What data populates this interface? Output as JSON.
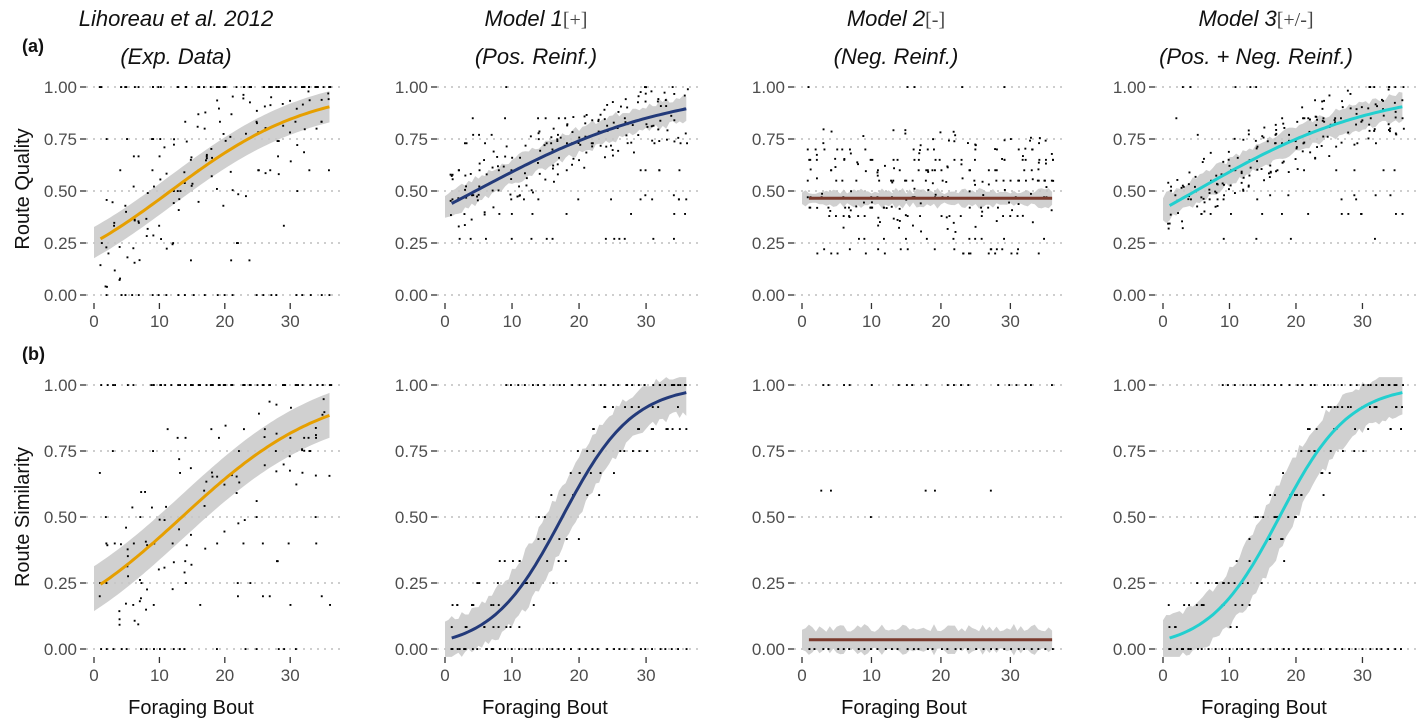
{
  "figure": {
    "panel_tags": [
      "(a)",
      "(b)"
    ],
    "columns": [
      {
        "title_line1": "Lihoreau et al. 2012",
        "bracket": "",
        "title_line2": "(Exp. Data)"
      },
      {
        "title_line1": "Model 1",
        "bracket": "[+]",
        "title_line2": "(Pos. Reinf.)"
      },
      {
        "title_line1": "Model 2",
        "bracket": "[-]",
        "title_line2": "(Neg. Reinf.)"
      },
      {
        "title_line1": "Model 3",
        "bracket": "[+/-]",
        "title_line2": "(Pos. + Neg. Reinf.)"
      }
    ],
    "row_labels": [
      "Route Quality",
      "Route Similarity"
    ],
    "xlabel": "Foraging Bout"
  },
  "chart_data": {
    "type": "scatter",
    "x_range": [
      0,
      37
    ],
    "ylim": [
      0,
      1
    ],
    "x_ticks": [
      0,
      10,
      20,
      30
    ],
    "y_ticks": [
      "0.00",
      "0.25",
      "0.50",
      "0.75",
      "1.00"
    ],
    "grid": "horizontal dotted",
    "colors": {
      "exp": "#E69F00",
      "model1": "#233A7A",
      "model2": "#7A3B2E",
      "model3": "#22CFCF",
      "ribbon": "#C8C8C8",
      "points": "#000000",
      "grid": "#BDBDBD"
    },
    "panels": [
      {
        "row": 0,
        "col": 0,
        "fit": {
          "kind": "logistic",
          "y1": 0.27,
          "y36": 0.905
        },
        "band": 0.075,
        "scatter": "spread_increasing",
        "seed": 11
      },
      {
        "row": 0,
        "col": 1,
        "fit": {
          "kind": "logistic",
          "y1": 0.44,
          "y36": 0.895
        },
        "band": 0.06,
        "scatter": "model_q",
        "seed": 23
      },
      {
        "row": 0,
        "col": 2,
        "fit": {
          "kind": "flat",
          "y": 0.465
        },
        "band": 0.035,
        "scatter": "model_q_flat",
        "seed": 37
      },
      {
        "row": 0,
        "col": 3,
        "fit": {
          "kind": "logistic",
          "y1": 0.43,
          "y36": 0.905
        },
        "band": 0.06,
        "scatter": "model_q",
        "seed": 41
      },
      {
        "row": 1,
        "col": 0,
        "fit": {
          "kind": "logistic",
          "y1": 0.245,
          "y36": 0.885
        },
        "band": 0.085,
        "scatter": "spread_increasing",
        "seed": 53
      },
      {
        "row": 1,
        "col": 1,
        "fit": {
          "kind": "sigmoid",
          "x0": 17.5,
          "k": 0.19
        },
        "band": 0.075,
        "scatter": "sim_model",
        "seed": 67
      },
      {
        "row": 1,
        "col": 2,
        "fit": {
          "kind": "flat",
          "y": 0.035
        },
        "band": 0.045,
        "scatter": "sim_flat",
        "seed": 79
      },
      {
        "row": 1,
        "col": 3,
        "fit": {
          "kind": "sigmoid",
          "x0": 17.5,
          "k": 0.19
        },
        "band": 0.08,
        "scatter": "sim_model",
        "seed": 83
      }
    ],
    "series": [
      {
        "name": "Lihoreau et al. 2012"
      },
      {
        "name": "Model 1"
      },
      {
        "name": "Model 2"
      },
      {
        "name": "Model 3"
      }
    ]
  }
}
